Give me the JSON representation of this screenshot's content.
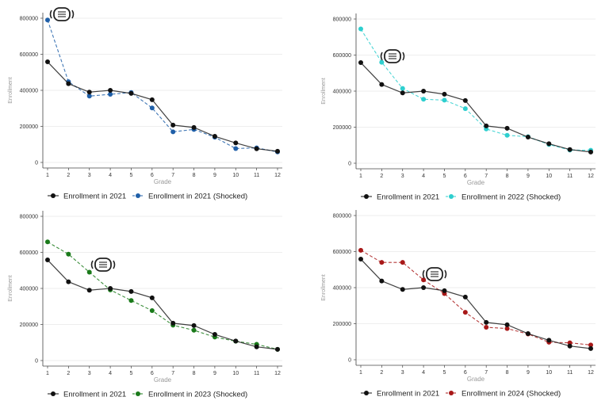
{
  "chart_data": [
    {
      "type": "line",
      "xlabel": "Grade",
      "ylabel": "Enrollment",
      "x": [
        1,
        2,
        3,
        4,
        5,
        6,
        7,
        8,
        9,
        10,
        11,
        12
      ],
      "ylim": [
        0,
        800000
      ],
      "yticks": [
        0,
        200000,
        400000,
        600000,
        800000
      ],
      "ytick_labels": [
        "0",
        "200000",
        "400000",
        "600000",
        "800000"
      ],
      "grid": true,
      "legend": "bottom",
      "annotation_icon": "face-mask-icon",
      "series": [
        {
          "name": "Enrollment in 2021",
          "color": "#111111",
          "style": "solid",
          "values": [
            558000,
            437000,
            390000,
            400000,
            383000,
            348000,
            207000,
            194000,
            145000,
            108000,
            76000,
            62000
          ]
        },
        {
          "name": "Enrollment in 2021 (Shocked)",
          "color": "#1f5fa8",
          "style": "dashed",
          "values": [
            790000,
            448000,
            368000,
            378000,
            388000,
            302000,
            170000,
            183000,
            140000,
            77000,
            81000,
            58000
          ]
        }
      ]
    },
    {
      "type": "line",
      "xlabel": "Grade",
      "ylabel": "Enrollment",
      "x": [
        1,
        2,
        3,
        4,
        5,
        6,
        7,
        8,
        9,
        10,
        11,
        12
      ],
      "ylim": [
        0,
        800000
      ],
      "yticks": [
        0,
        200000,
        400000,
        600000,
        800000
      ],
      "ytick_labels": [
        "0",
        "200000",
        "400000",
        "600000",
        "800000"
      ],
      "grid": true,
      "legend": "bottom",
      "annotation_icon": "face-mask-icon",
      "series": [
        {
          "name": "Enrollment in 2021",
          "color": "#111111",
          "style": "solid",
          "values": [
            558000,
            437000,
            390000,
            400000,
            383000,
            348000,
            207000,
            194000,
            145000,
            108000,
            76000,
            62000
          ]
        },
        {
          "name": "Enrollment in 2022 (Shocked)",
          "color": "#2ecfcf",
          "style": "dashed",
          "values": [
            745000,
            560000,
            415000,
            355000,
            350000,
            303000,
            190000,
            155000,
            147000,
            104000,
            73000,
            72000
          ]
        }
      ]
    },
    {
      "type": "line",
      "xlabel": "Grade",
      "ylabel": "Enrollment",
      "x": [
        1,
        2,
        3,
        4,
        5,
        6,
        7,
        8,
        9,
        10,
        11,
        12
      ],
      "ylim": [
        0,
        800000
      ],
      "yticks": [
        0,
        200000,
        400000,
        600000,
        800000
      ],
      "ytick_labels": [
        "0",
        "200000",
        "400000",
        "600000",
        "800000"
      ],
      "grid": true,
      "legend": "bottom",
      "annotation_icon": "face-mask-icon",
      "series": [
        {
          "name": "Enrollment in 2021",
          "color": "#111111",
          "style": "solid",
          "values": [
            558000,
            437000,
            390000,
            400000,
            383000,
            348000,
            207000,
            194000,
            145000,
            108000,
            76000,
            62000
          ]
        },
        {
          "name": "Enrollment in 2023 (Shocked)",
          "color": "#1a7a1a",
          "style": "dashed",
          "values": [
            658000,
            590000,
            490000,
            392000,
            333000,
            277000,
            196000,
            168000,
            130000,
            107000,
            90000,
            62000
          ]
        }
      ]
    },
    {
      "type": "line",
      "xlabel": "Grade",
      "ylabel": "Enrollment",
      "x": [
        1,
        2,
        3,
        4,
        5,
        6,
        7,
        8,
        9,
        10,
        11,
        12
      ],
      "ylim": [
        0,
        800000
      ],
      "yticks": [
        0,
        200000,
        400000,
        600000,
        800000
      ],
      "ytick_labels": [
        "0",
        "200000",
        "400000",
        "600000",
        "800000"
      ],
      "grid": true,
      "legend": "bottom",
      "annotation_icon": "face-mask-icon",
      "series": [
        {
          "name": "Enrollment in 2021",
          "color": "#111111",
          "style": "solid",
          "values": [
            558000,
            437000,
            390000,
            400000,
            383000,
            348000,
            207000,
            194000,
            145000,
            108000,
            76000,
            62000
          ]
        },
        {
          "name": "Enrollment in 2024 (Shocked)",
          "color": "#a81818",
          "style": "dashed",
          "values": [
            607000,
            540000,
            540000,
            443000,
            367000,
            263000,
            180000,
            173000,
            143000,
            97000,
            94000,
            82000
          ]
        }
      ]
    }
  ]
}
